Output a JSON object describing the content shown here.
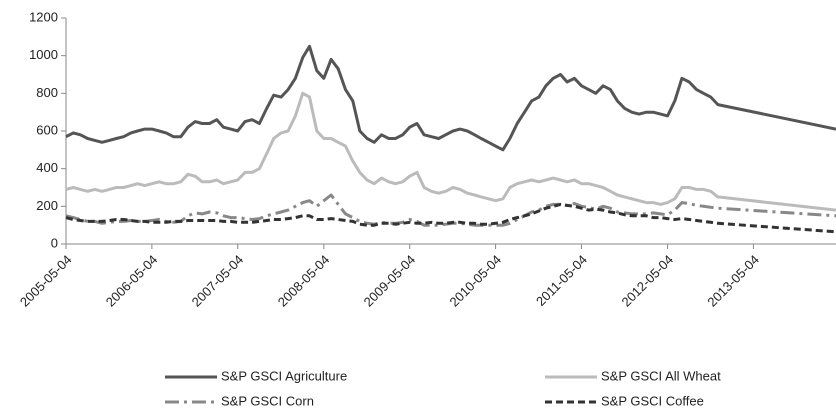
{
  "chart_data": {
    "type": "line",
    "x": [
      "2005-05-04",
      "2005-06-04",
      "2005-07-04",
      "2005-08-04",
      "2005-09-04",
      "2005-10-04",
      "2005-11-04",
      "2005-12-04",
      "2006-01-04",
      "2006-02-04",
      "2006-03-04",
      "2006-04-04",
      "2006-05-04",
      "2006-06-04",
      "2006-07-04",
      "2006-08-04",
      "2006-09-04",
      "2006-10-04",
      "2006-11-04",
      "2006-12-04",
      "2007-01-04",
      "2007-02-04",
      "2007-03-04",
      "2007-04-04",
      "2007-05-04",
      "2007-06-04",
      "2007-07-04",
      "2007-08-04",
      "2007-09-04",
      "2007-10-04",
      "2007-11-04",
      "2007-12-04",
      "2008-01-04",
      "2008-02-04",
      "2008-03-04",
      "2008-04-04",
      "2008-05-04",
      "2008-06-04",
      "2008-07-04",
      "2008-08-04",
      "2008-09-04",
      "2008-10-04",
      "2008-11-04",
      "2008-12-04",
      "2009-01-04",
      "2009-02-04",
      "2009-03-04",
      "2009-04-04",
      "2009-05-04",
      "2009-06-04",
      "2009-07-04",
      "2009-08-04",
      "2009-09-04",
      "2009-10-04",
      "2009-11-04",
      "2009-12-04",
      "2010-01-04",
      "2010-02-04",
      "2010-03-04",
      "2010-04-04",
      "2010-05-04",
      "2010-06-04",
      "2010-07-04",
      "2010-08-04",
      "2010-09-04",
      "2010-10-04",
      "2010-11-04",
      "2010-12-04",
      "2011-01-04",
      "2011-02-04",
      "2011-03-04",
      "2011-04-04",
      "2011-05-04",
      "2011-06-04",
      "2011-07-04",
      "2011-08-04",
      "2011-09-04",
      "2011-10-04",
      "2011-11-04",
      "2011-12-04",
      "2012-01-04",
      "2012-02-04",
      "2012-03-04",
      "2012-04-04",
      "2012-05-04",
      "2012-06-04",
      "2012-07-04",
      "2012-08-04",
      "2012-09-04",
      "2012-10-04",
      "2012-11-04",
      "2012-12-04",
      "2014-04-20"
    ],
    "series": [
      {
        "name": "S&P GSCI Agriculture",
        "color": "#555555",
        "dash": "",
        "values": [
          570,
          590,
          580,
          560,
          550,
          540,
          550,
          560,
          570,
          590,
          600,
          610,
          610,
          600,
          590,
          570,
          570,
          620,
          650,
          640,
          640,
          660,
          620,
          610,
          600,
          650,
          660,
          640,
          720,
          790,
          780,
          820,
          880,
          990,
          1050,
          920,
          880,
          980,
          930,
          820,
          760,
          600,
          560,
          540,
          580,
          560,
          560,
          580,
          620,
          640,
          580,
          570,
          560,
          580,
          600,
          610,
          600,
          580,
          560,
          540,
          520,
          500,
          560,
          640,
          700,
          760,
          780,
          840,
          880,
          900,
          860,
          880,
          840,
          820,
          800,
          840,
          820,
          760,
          720,
          700,
          690,
          700,
          700,
          690,
          680,
          760,
          880,
          860,
          820,
          800,
          780,
          740,
          610
        ]
      },
      {
        "name": "S&P GSCI All Wheat",
        "color": "#bbbbbb",
        "dash": "",
        "values": [
          290,
          300,
          290,
          280,
          290,
          280,
          290,
          300,
          300,
          310,
          320,
          310,
          320,
          330,
          320,
          320,
          330,
          370,
          360,
          330,
          330,
          340,
          320,
          330,
          340,
          380,
          380,
          400,
          480,
          560,
          590,
          600,
          680,
          800,
          780,
          600,
          560,
          560,
          540,
          520,
          440,
          380,
          340,
          320,
          350,
          330,
          320,
          330,
          360,
          380,
          300,
          280,
          270,
          280,
          300,
          290,
          270,
          260,
          250,
          240,
          230,
          240,
          300,
          320,
          330,
          340,
          330,
          340,
          350,
          340,
          330,
          340,
          320,
          320,
          310,
          300,
          280,
          260,
          250,
          240,
          230,
          220,
          220,
          210,
          220,
          240,
          300,
          300,
          290,
          290,
          280,
          250,
          180
        ]
      },
      {
        "name": "S&P GSCI Corn",
        "color": "#888888",
        "dash": "14 5 3 5",
        "values": [
          150,
          140,
          130,
          120,
          120,
          110,
          115,
          120,
          120,
          125,
          120,
          120,
          125,
          130,
          120,
          115,
          120,
          150,
          165,
          160,
          170,
          165,
          150,
          140,
          140,
          135,
          130,
          135,
          150,
          160,
          170,
          180,
          200,
          220,
          230,
          200,
          230,
          260,
          210,
          160,
          140,
          120,
          110,
          105,
          115,
          110,
          110,
          115,
          130,
          120,
          100,
          100,
          100,
          105,
          110,
          110,
          105,
          100,
          100,
          100,
          100,
          100,
          110,
          130,
          150,
          170,
          180,
          200,
          210,
          210,
          205,
          215,
          200,
          195,
          185,
          200,
          190,
          170,
          165,
          160,
          160,
          160,
          165,
          160,
          155,
          180,
          220,
          215,
          205,
          200,
          195,
          190,
          150
        ]
      },
      {
        "name": "S&P GSCI Coffee",
        "color": "#333333",
        "dash": "7 4",
        "values": [
          140,
          130,
          125,
          120,
          120,
          120,
          125,
          130,
          130,
          125,
          120,
          120,
          115,
          115,
          115,
          120,
          120,
          125,
          125,
          125,
          125,
          125,
          120,
          120,
          115,
          115,
          115,
          120,
          125,
          130,
          130,
          135,
          140,
          150,
          150,
          130,
          130,
          135,
          130,
          125,
          120,
          105,
          100,
          100,
          110,
          110,
          105,
          110,
          115,
          110,
          110,
          115,
          110,
          110,
          115,
          115,
          110,
          110,
          105,
          105,
          110,
          115,
          130,
          140,
          150,
          160,
          175,
          190,
          200,
          210,
          205,
          200,
          190,
          180,
          185,
          180,
          170,
          165,
          155,
          150,
          150,
          150,
          140,
          140,
          135,
          130,
          135,
          130,
          125,
          120,
          115,
          110,
          65
        ]
      }
    ],
    "xlim": [
      "2005-05-04",
      "2014-04-20"
    ],
    "xticks": [
      "2005-05-04",
      "2006-05-04",
      "2007-05-04",
      "2008-05-04",
      "2009-05-04",
      "2010-05-04",
      "2011-05-04",
      "2012-05-04",
      "2013-05-04"
    ],
    "ylim": [
      0,
      1200
    ],
    "yticks": [
      0,
      200,
      400,
      600,
      800,
      1000,
      1200
    ]
  }
}
